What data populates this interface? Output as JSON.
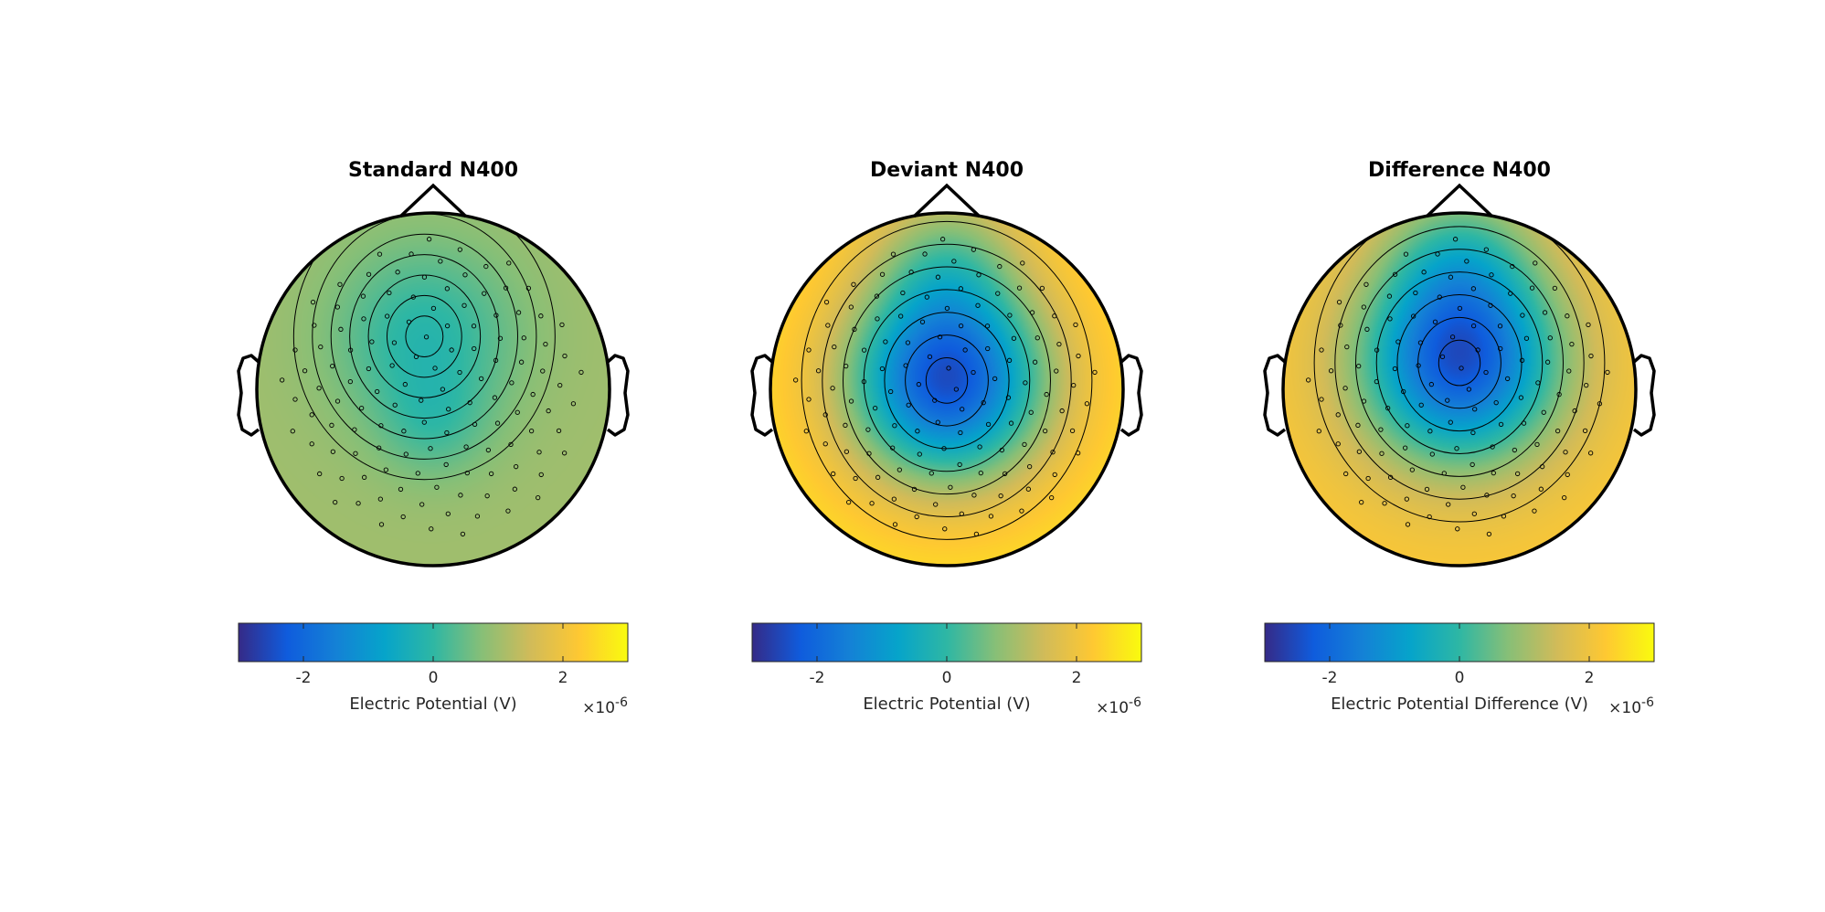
{
  "colors": {
    "parula": [
      "#352a87",
      "#0f5cdd",
      "#1481d6",
      "#06a4ca",
      "#2eb7a4",
      "#87bf77",
      "#d1bb59",
      "#fec832",
      "#f9fb0e"
    ],
    "head_outline": "#000000",
    "contour": "#000000"
  },
  "chart_data": [
    {
      "type": "heatmap",
      "title": "Standard N400",
      "colorbar": {
        "label": "Electric Potential (V)",
        "ticks": [
          -2,
          0,
          2
        ],
        "tick_labels": [
          "-2",
          "0",
          "2"
        ],
        "range": [
          -3,
          3
        ],
        "exponent_label": "×10",
        "exponent": "-6"
      },
      "background_value": 1.0,
      "sources": [
        {
          "x": -0.05,
          "y": 0.3,
          "amp": -1.1,
          "sigma": 0.36
        },
        {
          "x": 0.0,
          "y": -0.2,
          "amp": -0.6,
          "sigma": 0.22
        }
      ],
      "electrode_count": 128
    },
    {
      "type": "heatmap",
      "title": "Deviant N400",
      "colorbar": {
        "label": "Electric Potential (V)",
        "ticks": [
          -2,
          0,
          2
        ],
        "tick_labels": [
          "-2",
          "0",
          "2"
        ],
        "range": [
          -3,
          3
        ],
        "exponent_label": "×10",
        "exponent": "-6"
      },
      "background_value": 2.6,
      "sources": [
        {
          "x": 0.0,
          "y": 0.05,
          "amp": -5.0,
          "sigma": 0.4
        },
        {
          "x": 0.0,
          "y": 0.75,
          "amp": -1.5,
          "sigma": 0.3
        }
      ],
      "electrode_count": 128
    },
    {
      "type": "heatmap",
      "title": "Difference N400",
      "colorbar": {
        "label": "Electric Potential Difference (V)",
        "ticks": [
          -2,
          0,
          2
        ],
        "tick_labels": [
          "-2",
          "0",
          "2"
        ],
        "range": [
          -3,
          3
        ],
        "exponent_label": "×10",
        "exponent": "-6"
      },
      "background_value": 2.2,
      "sources": [
        {
          "x": 0.0,
          "y": 0.15,
          "amp": -4.5,
          "sigma": 0.4
        },
        {
          "x": 0.0,
          "y": 0.75,
          "amp": -1.5,
          "sigma": 0.3
        }
      ],
      "electrode_count": 128
    }
  ]
}
